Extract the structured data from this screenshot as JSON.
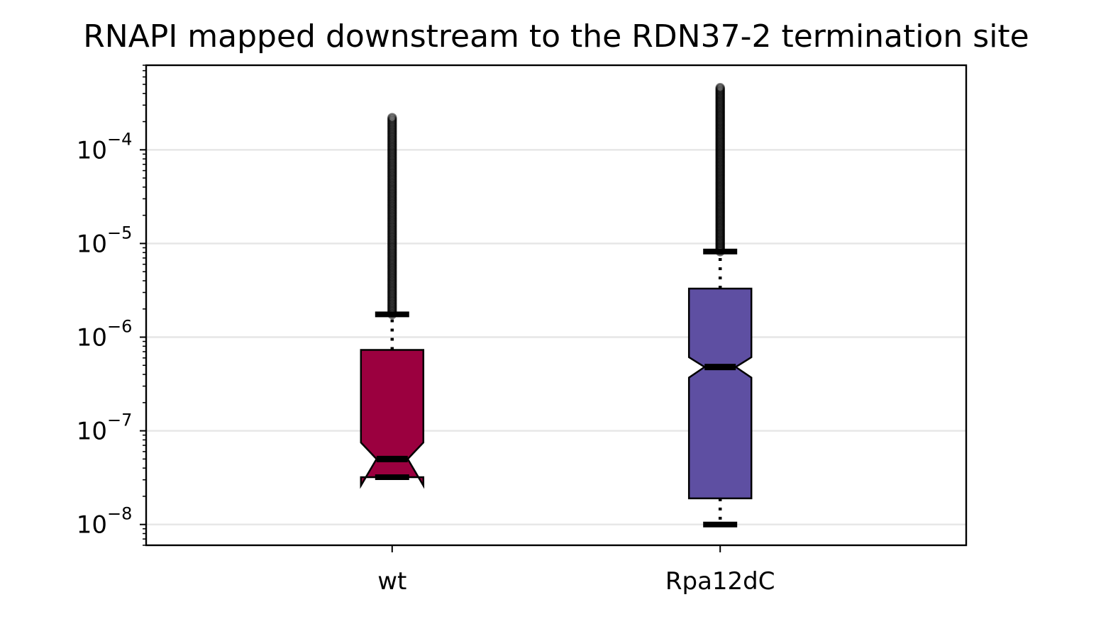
{
  "chart_data": {
    "type": "boxplot",
    "title": "RNAPI mapped downstream to the RDN37-2 termination site",
    "xlabel": "",
    "ylabel": "",
    "yscale": "log",
    "ylim": [
      6e-09,
      0.0008
    ],
    "y_ticks": [
      {
        "value": 1e-08,
        "base": "10",
        "exp": "−8"
      },
      {
        "value": 1e-07,
        "base": "10",
        "exp": "−7"
      },
      {
        "value": 1e-06,
        "base": "10",
        "exp": "−6"
      },
      {
        "value": 1e-05,
        "base": "10",
        "exp": "−5"
      },
      {
        "value": 0.0001,
        "base": "10",
        "exp": "−4"
      }
    ],
    "grid": "y",
    "notched": true,
    "categories": [
      "wt",
      "Rpa12dC"
    ],
    "boxes": [
      {
        "label": "wt",
        "color": "#9b003f",
        "whisker_low": 3.2e-08,
        "q1": 3.2e-08,
        "median": 5e-08,
        "q3": 7.3e-07,
        "whisker_high": 1.75e-06,
        "notch_low": 2.6e-08,
        "notch_high": 7.5e-08,
        "outlier_max": 0.00022
      },
      {
        "label": "Rpa12dC",
        "color": "#5e4fa2",
        "whisker_low": 1e-08,
        "q1": 1.9e-08,
        "median": 4.8e-07,
        "q3": 3.3e-06,
        "whisker_high": 8.2e-06,
        "notch_low": 3.7e-07,
        "notch_high": 6.1e-07,
        "outlier_max": 0.00046
      }
    ]
  }
}
